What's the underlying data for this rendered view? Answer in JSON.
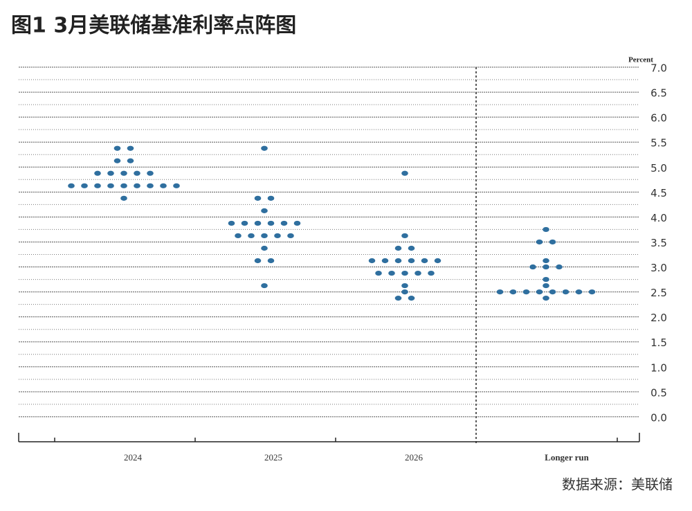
{
  "chart_data": {
    "type": "dot",
    "title": "图1  3月美联储基准利率点阵图",
    "y_label": "Percent",
    "source": "数据来源：美联储",
    "color": "#2f6f9f",
    "categories": [
      "2024",
      "2025",
      "2026",
      "Longer run"
    ],
    "values": [
      [
        5.375,
        5.375,
        5.125,
        5.125,
        4.875,
        4.875,
        4.875,
        4.875,
        4.875,
        4.625,
        4.625,
        4.625,
        4.625,
        4.625,
        4.625,
        4.625,
        4.625,
        4.625,
        4.375
      ],
      [
        5.375,
        4.375,
        4.375,
        4.125,
        3.875,
        3.875,
        3.875,
        3.875,
        3.875,
        3.875,
        3.625,
        3.625,
        3.625,
        3.625,
        3.625,
        3.375,
        3.125,
        3.125,
        2.625
      ],
      [
        4.875,
        3.625,
        3.375,
        3.375,
        3.125,
        3.125,
        3.125,
        3.125,
        3.125,
        3.125,
        2.875,
        2.875,
        2.875,
        2.875,
        2.875,
        2.625,
        2.5,
        2.375,
        2.375
      ],
      [
        3.75,
        3.5,
        3.5,
        3.125,
        3.0,
        3.0,
        3.0,
        2.75,
        2.625,
        2.5,
        2.5,
        2.5,
        2.5,
        2.5,
        2.5,
        2.5,
        2.5,
        2.375
      ]
    ],
    "ylim": [
      -0.5,
      7.0
    ],
    "yticks": [
      {
        "value": 7,
        "label": "7.0"
      },
      {
        "value": 6.5,
        "label": "6.5"
      },
      {
        "value": 6,
        "label": "6.0"
      },
      {
        "value": 5.5,
        "label": "5.5"
      },
      {
        "value": 5,
        "label": "5.0"
      },
      {
        "value": 4.5,
        "label": "4.5"
      },
      {
        "value": 4,
        "label": "4.0"
      },
      {
        "value": 3.5,
        "label": "3.5"
      },
      {
        "value": 3,
        "label": "3.0"
      },
      {
        "value": 2.5,
        "label": "2.5"
      },
      {
        "value": 2,
        "label": "2.0"
      },
      {
        "value": 1.5,
        "label": "1.5"
      },
      {
        "value": 1,
        "label": "1.0"
      },
      {
        "value": 0.5,
        "label": "0.5"
      },
      {
        "value": 0,
        "label": "0.0"
      }
    ],
    "minor_yticks": [
      6.75,
      6.25,
      5.75,
      5.25,
      4.75,
      4.25,
      3.75,
      3.25,
      2.75,
      2.25,
      1.75,
      1.25,
      0.75,
      0.25
    ],
    "grid": true
  }
}
